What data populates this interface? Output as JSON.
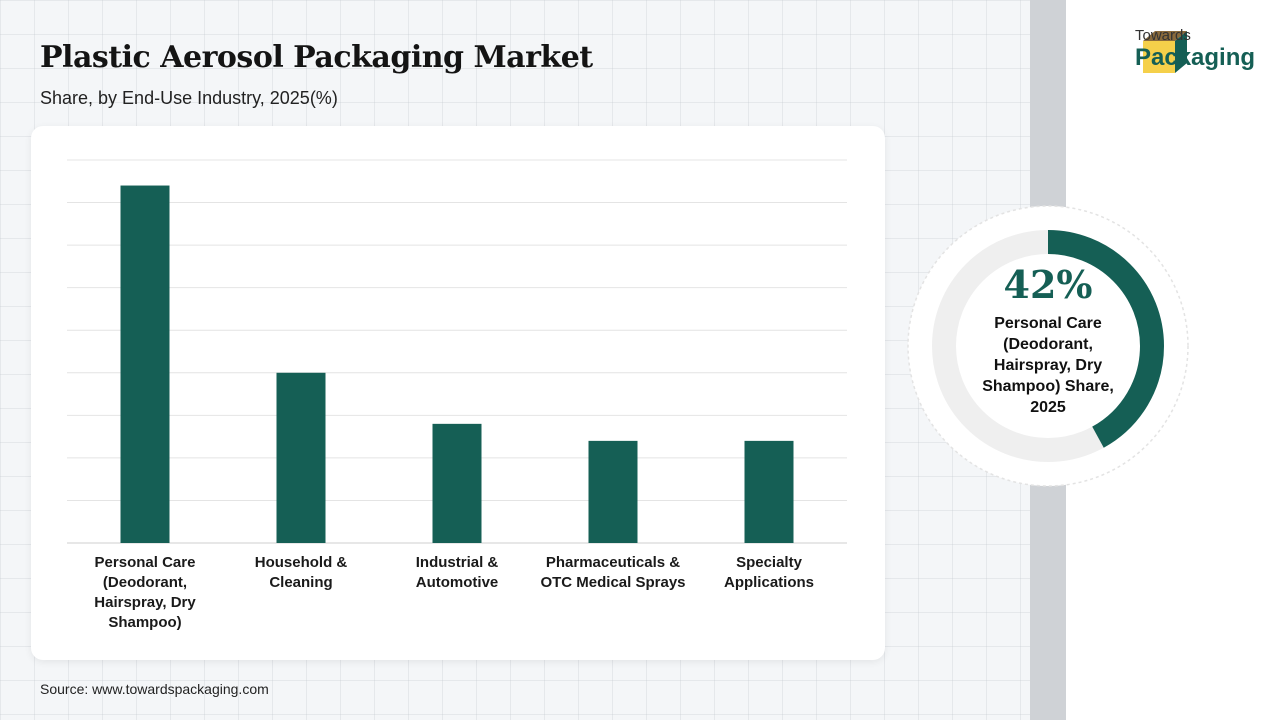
{
  "title": "Plastic Aerosol Packaging Market",
  "subtitle": "Share, by End-Use Industry, 2025(%)",
  "source": "Source: www.towardspackaging.com",
  "brand": {
    "line1": "Towards",
    "line2": "Packaging",
    "logo_icon": "box-icon",
    "colors": {
      "accent": "#155f55",
      "box_top": "#8a6a3b",
      "box_front": "#f5d04a"
    }
  },
  "chart_data": {
    "type": "bar",
    "categories": [
      "Personal Care (Deodorant, Hairspray, Dry Shampoo)",
      "Household & Cleaning",
      "Industrial & Automotive",
      "Pharmaceuticals & OTC Medical Sprays",
      "Specialty Applications"
    ],
    "category_lines": [
      [
        "Personal Care",
        "(Deodorant,",
        "Hairspray, Dry",
        "Shampoo)"
      ],
      [
        "Household &",
        "Cleaning"
      ],
      [
        "Industrial &",
        "Automotive"
      ],
      [
        "Pharmaceuticals &",
        "OTC Medical Sprays"
      ],
      [
        "Specialty",
        "Applications"
      ]
    ],
    "values": [
      42,
      20,
      14,
      12,
      12
    ],
    "ylim": [
      0,
      45
    ],
    "grid": true,
    "bar_color": "#155f55"
  },
  "highlight": {
    "value": "42%",
    "caption_lines": [
      "Personal Care",
      "(Deodorant,",
      "Hairspray, Dry",
      "Shampoo) Share,",
      "2025"
    ],
    "fraction": 0.42,
    "color": "#155f55",
    "track_color": "#efefef"
  }
}
